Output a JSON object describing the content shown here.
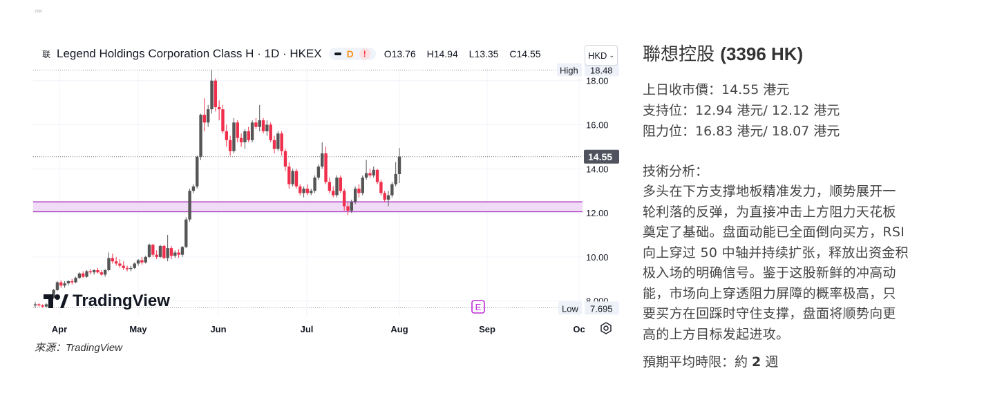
{
  "tiny_code": "2350",
  "header": {
    "symbol_icon": "联",
    "title": "Legend Holdings Corporation Class H · 1D · HKEX",
    "badge_d": "D",
    "badge_excl": "!",
    "ohlc": {
      "o_label": "O",
      "o": "13.76",
      "h_label": "H",
      "h": "14.94",
      "l_label": "L",
      "l": "13.35",
      "c_label": "C",
      "c": "14.55"
    }
  },
  "currency": "HKD",
  "logo_text": "TradingView",
  "events_label": "E",
  "source": "來源：TradingView",
  "colors": {
    "up": "#555555",
    "down": "#ef2f4b",
    "band_fill": "#f1dcf7",
    "band_line": "#a52ab8",
    "grid": "#f0f3fa"
  },
  "chart_data": {
    "type": "candlestick",
    "y_ticks": [
      "18.00",
      "16.00",
      "14.00",
      "12.00",
      "10.00",
      "8.000"
    ],
    "y_tick_values": [
      18,
      16,
      14,
      12,
      10,
      8
    ],
    "ylim": [
      7.3,
      18.9
    ],
    "x_labels": [
      "Apr",
      "May",
      "Jun",
      "Jul",
      "Aug",
      "Sep",
      "Oc"
    ],
    "high_marker": {
      "label": "High",
      "value": "18.48"
    },
    "low_marker": {
      "label": "Low",
      "value": "7.695"
    },
    "last_price": {
      "value": "14.55"
    },
    "support_band": [
      12.05,
      12.5
    ],
    "candles": [
      [
        7.8,
        7.95,
        7.7,
        7.85
      ],
      [
        7.85,
        7.9,
        7.75,
        7.8
      ],
      [
        7.8,
        7.85,
        7.7,
        7.75
      ],
      [
        7.75,
        7.9,
        7.7,
        7.85
      ],
      [
        7.85,
        8.2,
        7.8,
        8.15
      ],
      [
        8.15,
        8.55,
        8.1,
        8.5
      ],
      [
        8.5,
        8.9,
        8.45,
        8.85
      ],
      [
        8.85,
        8.95,
        8.6,
        8.7
      ],
      [
        8.7,
        8.9,
        8.6,
        8.8
      ],
      [
        8.8,
        8.95,
        8.7,
        8.9
      ],
      [
        8.9,
        9.0,
        8.75,
        8.85
      ],
      [
        8.85,
        9.1,
        8.8,
        9.05
      ],
      [
        9.05,
        9.3,
        9.0,
        9.25
      ],
      [
        9.25,
        9.35,
        9.05,
        9.1
      ],
      [
        9.1,
        9.4,
        9.05,
        9.35
      ],
      [
        9.35,
        9.45,
        9.2,
        9.3
      ],
      [
        9.3,
        9.45,
        9.2,
        9.4
      ],
      [
        9.4,
        9.5,
        9.25,
        9.3
      ],
      [
        9.3,
        9.4,
        9.15,
        9.2
      ],
      [
        9.2,
        9.45,
        9.1,
        9.4
      ],
      [
        9.4,
        10.2,
        9.35,
        9.95
      ],
      [
        9.95,
        10.15,
        9.7,
        9.8
      ],
      [
        9.8,
        10.0,
        9.6,
        9.7
      ],
      [
        9.7,
        9.9,
        9.5,
        9.6
      ],
      [
        9.6,
        9.8,
        9.4,
        9.5
      ],
      [
        9.5,
        9.6,
        9.35,
        9.45
      ],
      [
        9.45,
        9.6,
        9.35,
        9.5
      ],
      [
        9.5,
        9.75,
        9.45,
        9.7
      ],
      [
        9.7,
        9.9,
        9.6,
        9.85
      ],
      [
        9.85,
        10.0,
        9.65,
        9.75
      ],
      [
        9.75,
        10.05,
        9.7,
        10.0
      ],
      [
        10.0,
        10.6,
        9.95,
        10.55
      ],
      [
        10.55,
        10.6,
        10.0,
        10.1
      ],
      [
        10.1,
        10.3,
        9.9,
        10.0
      ],
      [
        10.0,
        10.55,
        9.95,
        10.5
      ],
      [
        10.5,
        10.55,
        9.9,
        9.95
      ],
      [
        9.95,
        11.0,
        9.8,
        10.4
      ],
      [
        10.4,
        10.5,
        9.9,
        10.05
      ],
      [
        10.05,
        10.3,
        9.95,
        10.2
      ],
      [
        10.2,
        10.35,
        9.95,
        10.1
      ],
      [
        10.1,
        10.5,
        10.0,
        10.45
      ],
      [
        10.45,
        11.8,
        10.4,
        11.7
      ],
      [
        11.7,
        13.1,
        11.6,
        13.0
      ],
      [
        13.0,
        13.3,
        12.9,
        13.2
      ],
      [
        13.2,
        14.6,
        13.1,
        14.55
      ],
      [
        14.55,
        16.5,
        14.4,
        16.45
      ],
      [
        16.45,
        17.2,
        15.7,
        16.1
      ],
      [
        16.1,
        16.9,
        15.9,
        16.7
      ],
      [
        16.7,
        18.5,
        16.5,
        18.0
      ],
      [
        18.0,
        18.1,
        16.6,
        16.8
      ],
      [
        16.8,
        17.1,
        16.2,
        16.7
      ],
      [
        16.7,
        16.9,
        15.6,
        15.7
      ],
      [
        15.7,
        16.0,
        15.0,
        15.3
      ],
      [
        15.3,
        15.5,
        14.6,
        14.8
      ],
      [
        14.8,
        16.3,
        14.7,
        16.1
      ],
      [
        16.1,
        16.2,
        15.2,
        15.4
      ],
      [
        15.4,
        15.6,
        15.0,
        15.2
      ],
      [
        15.2,
        15.8,
        14.9,
        15.7
      ],
      [
        15.7,
        15.9,
        15.2,
        15.3
      ],
      [
        15.3,
        16.2,
        15.2,
        16.1
      ],
      [
        16.1,
        16.3,
        15.8,
        15.9
      ],
      [
        15.9,
        16.9,
        15.7,
        16.2
      ],
      [
        16.2,
        16.3,
        15.6,
        15.7
      ],
      [
        15.7,
        16.2,
        15.5,
        16.0
      ],
      [
        16.0,
        16.1,
        15.2,
        15.3
      ],
      [
        15.3,
        15.5,
        14.7,
        14.9
      ],
      [
        14.9,
        15.7,
        14.8,
        15.6
      ],
      [
        15.6,
        15.7,
        14.6,
        14.8
      ],
      [
        14.8,
        14.9,
        13.9,
        14.1
      ],
      [
        14.1,
        14.3,
        13.1,
        13.3
      ],
      [
        13.3,
        14.0,
        13.2,
        13.9
      ],
      [
        13.9,
        14.0,
        13.1,
        13.2
      ],
      [
        13.2,
        13.3,
        12.8,
        12.9
      ],
      [
        12.9,
        13.2,
        12.7,
        13.1
      ],
      [
        13.1,
        13.3,
        12.8,
        12.9
      ],
      [
        12.9,
        13.1,
        12.8,
        13.0
      ],
      [
        13.0,
        13.7,
        12.9,
        13.6
      ],
      [
        13.6,
        14.2,
        13.5,
        14.1
      ],
      [
        14.1,
        15.2,
        14.0,
        14.7
      ],
      [
        14.7,
        15.0,
        13.3,
        13.4
      ],
      [
        13.4,
        13.6,
        12.9,
        13.0
      ],
      [
        13.0,
        13.2,
        12.7,
        12.8
      ],
      [
        12.8,
        13.7,
        12.7,
        13.6
      ],
      [
        13.6,
        13.7,
        12.9,
        13.0
      ],
      [
        13.0,
        13.1,
        12.1,
        12.3
      ],
      [
        12.3,
        12.5,
        11.9,
        12.1
      ],
      [
        12.1,
        12.6,
        12.0,
        12.5
      ],
      [
        12.5,
        13.2,
        12.4,
        13.1
      ],
      [
        13.1,
        13.3,
        12.7,
        12.9
      ],
      [
        12.9,
        13.7,
        12.8,
        13.6
      ],
      [
        13.6,
        14.4,
        13.5,
        13.8
      ],
      [
        13.8,
        14.0,
        13.6,
        13.7
      ],
      [
        13.7,
        14.1,
        13.6,
        13.95
      ],
      [
        13.95,
        14.0,
        13.3,
        13.4
      ],
      [
        13.4,
        13.5,
        12.8,
        12.9
      ],
      [
        12.9,
        13.0,
        12.5,
        12.6
      ],
      [
        12.6,
        13.0,
        12.3,
        12.8
      ],
      [
        12.8,
        13.4,
        12.7,
        13.3
      ],
      [
        13.3,
        14.3,
        13.2,
        13.76
      ],
      [
        13.76,
        14.94,
        13.35,
        14.55
      ]
    ]
  },
  "analysis": {
    "title_cn": "聯想控股",
    "title_code": "(3396 HK)",
    "prev_close": "上日收市價：14.55 港元",
    "support": "支持位：12.94 港元/ 12.12 港元",
    "resistance": "阻力位：16.83 港元/ 18.07 港元",
    "ta_heading": "技術分析：",
    "ta_lines": [
      "多头在下方支撑地板精准发力，顺势展开一",
      "轮利落的反弹，为直接冲击上方阻力天花板",
      "奠定了基础。盘面动能已全面倒向买方，RSI",
      "向上穿过 50 中轴并持续扩张，释放出资金积",
      "极入场的明确信号。鉴于这股新鲜的冲高动",
      "能，市场向上穿透阻力屏障的概率极高，只",
      "要买方在回踩时守住支撑，盘面将顺势向更",
      "高的上方目标发起进攻。"
    ],
    "period_label": "預期平均時限：約 ",
    "period_value": "2",
    "period_unit": " 週"
  }
}
